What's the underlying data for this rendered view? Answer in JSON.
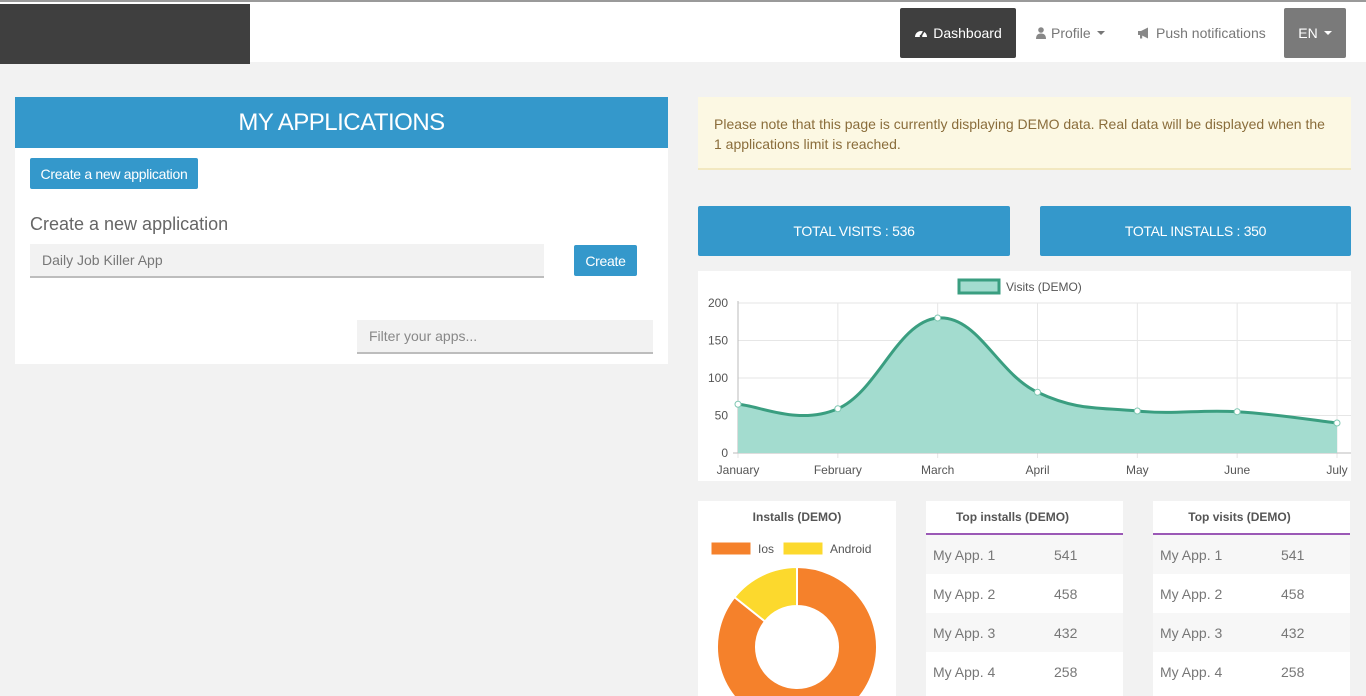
{
  "nav": {
    "dashboard_label": "Dashboard",
    "profile_label": "Profile",
    "push_label": "Push notifications",
    "lang_label": "EN"
  },
  "apps_panel": {
    "title": "MY APPLICATIONS",
    "create_new_button": "Create a new application",
    "create_section_label": "Create a new application",
    "name_input_value": "Daily Job Killer App",
    "create_button": "Create",
    "filter_placeholder": "Filter your apps..."
  },
  "alert": {
    "text": "Please note that this page is currently displaying DEMO data. Real data will be displayed when the 1 applications limit is reached."
  },
  "stats": {
    "total_visits": "TOTAL VISITS : 536",
    "total_installs": "TOTAL INSTALLS : 350"
  },
  "colors": {
    "primary": "#3498cb",
    "dark": "#3f3f3f",
    "line": "#3a9e80",
    "line_fill": "#a3dccf",
    "ios": "#f5812b",
    "android": "#fcd92d",
    "top_border": "#9b59b6"
  },
  "chart_data": [
    {
      "type": "area",
      "legend": [
        "Visits (DEMO)"
      ],
      "categories": [
        "January",
        "February",
        "March",
        "April",
        "May",
        "June",
        "July"
      ],
      "series": [
        {
          "name": "Visits (DEMO)",
          "values": [
            65,
            59,
            180,
            81,
            56,
            55,
            40
          ]
        }
      ],
      "ylim": [
        0,
        200
      ],
      "yticks": [
        0,
        50,
        100,
        150,
        200
      ],
      "grid": true,
      "legend_position": "top"
    },
    {
      "type": "pie",
      "title": "Installs (DEMO)",
      "labels": [
        "Ios",
        "Android"
      ],
      "values": [
        300,
        50
      ],
      "legend_position": "top"
    }
  ],
  "top_installs": {
    "title": "Top installs (DEMO)",
    "rows": [
      {
        "name": "My App. 1",
        "value": "541"
      },
      {
        "name": "My App. 2",
        "value": "458"
      },
      {
        "name": "My App. 3",
        "value": "432"
      },
      {
        "name": "My App. 4",
        "value": "258"
      }
    ]
  },
  "top_visits": {
    "title": "Top visits (DEMO)",
    "rows": [
      {
        "name": "My App. 1",
        "value": "541"
      },
      {
        "name": "My App. 2",
        "value": "458"
      },
      {
        "name": "My App. 3",
        "value": "432"
      },
      {
        "name": "My App. 4",
        "value": "258"
      }
    ]
  }
}
